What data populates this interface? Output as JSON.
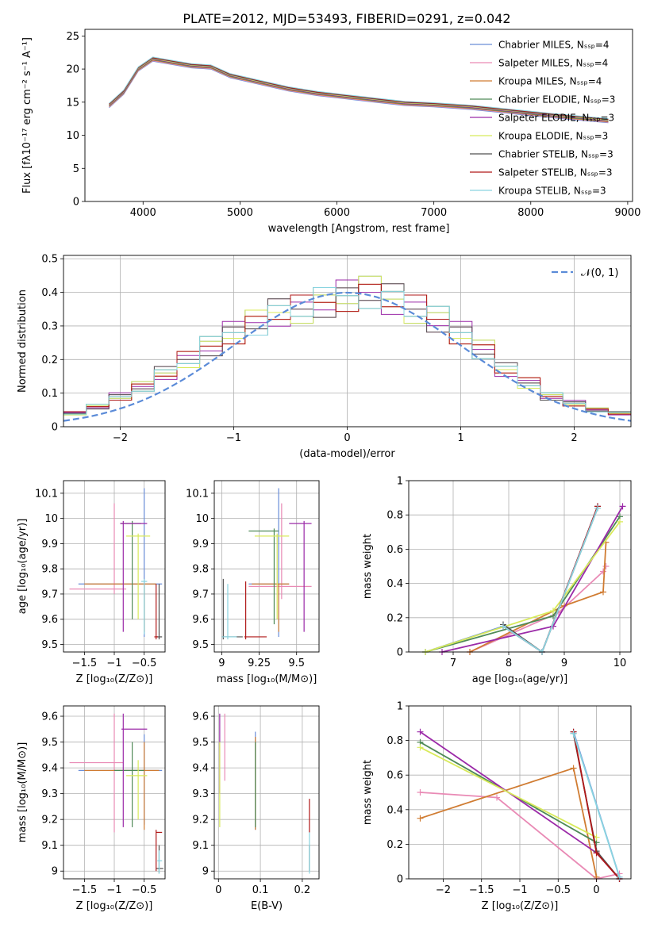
{
  "title": "PLATE=2012, MJD=53493, FIBERID=0291, z=0.042",
  "colors": [
    "#6a8ed8",
    "#e98ab5",
    "#d07c32",
    "#4f8a57",
    "#9b2aa8",
    "#d8ea5a",
    "#505050",
    "#b01818",
    "#8ad4e0"
  ],
  "chart_data": [
    {
      "id": "spectrum",
      "type": "line",
      "xlabel": "wavelength [Angstrom, rest frame]",
      "ylabel": "Flux [fλ10⁻¹⁷ erg cm⁻² s⁻¹ A⁻¹]",
      "xlim": [
        3400,
        9050
      ],
      "ylim": [
        0,
        26
      ],
      "xticks": [
        4000,
        5000,
        6000,
        7000,
        8000,
        9000
      ],
      "yticks": [
        0,
        5,
        10,
        15,
        20,
        25
      ],
      "legend_position": "top-right",
      "series": [
        {
          "name": "Chabrier MILES, Nₛₛₚ=4",
          "color": "#6a8ed8"
        },
        {
          "name": "Salpeter MILES, Nₛₛₚ=4",
          "color": "#e98ab5"
        },
        {
          "name": "Kroupa MILES, Nₛₛₚ=4",
          "color": "#d07c32"
        },
        {
          "name": "Chabrier ELODIE, Nₛₛₚ=3",
          "color": "#4f8a57"
        },
        {
          "name": "Salpeter ELODIE, Nₛₛₚ=3",
          "color": "#9b2aa8"
        },
        {
          "name": "Kroupa ELODIE, Nₛₛₚ=3",
          "color": "#d8ea5a"
        },
        {
          "name": "Chabrier STELIB, Nₛₛₚ=3",
          "color": "#505050"
        },
        {
          "name": "Salpeter STELIB, Nₛₛₚ=3",
          "color": "#b01818"
        },
        {
          "name": "Kroupa STELIB, Nₛₛₚ=3",
          "color": "#8ad4e0"
        }
      ],
      "data_x": [
        3650,
        3800,
        3950,
        4100,
        4300,
        4500,
        4700,
        4900,
        5200,
        5500,
        5800,
        6100,
        6400,
        6700,
        7000,
        7400,
        7800,
        8200,
        8500,
        8800
      ],
      "data_y": [
        14.5,
        16.5,
        20,
        21.5,
        21,
        20.5,
        20.3,
        19,
        18,
        17,
        16.3,
        15.8,
        15.3,
        14.8,
        14.6,
        14.2,
        13.6,
        13,
        12.6,
        12.2
      ],
      "model_x": [
        3650,
        3800,
        3950,
        4100,
        4300,
        4500,
        4700,
        4900,
        5200,
        5500,
        5800,
        6100,
        6400,
        6700,
        7000,
        7400,
        7800,
        8200,
        8500,
        8800
      ],
      "model_y": [
        14.5,
        16.5,
        20,
        21.5,
        21,
        20.5,
        20.3,
        19,
        18,
        17,
        16.3,
        15.8,
        15.3,
        14.8,
        14.6,
        14.2,
        13.6,
        13,
        12.6,
        12.2
      ]
    },
    {
      "id": "residuals",
      "type": "line",
      "xlabel": "(data-model)/error",
      "ylabel": "Normed distribution",
      "xlim": [
        -2.5,
        2.5
      ],
      "ylim": [
        0,
        0.51
      ],
      "xticks": [
        -2,
        -1,
        0,
        1,
        2
      ],
      "yticks": [
        0.0,
        0.1,
        0.2,
        0.3,
        0.4,
        0.5
      ],
      "legend": "𝒩(0, 1)",
      "legend_position": "top-right",
      "bin_centers": [
        -2.4,
        -2.2,
        -2.0,
        -1.8,
        -1.6,
        -1.4,
        -1.2,
        -1.0,
        -0.8,
        -0.6,
        -0.4,
        -0.2,
        0.0,
        0.2,
        0.4,
        0.6,
        0.8,
        1.0,
        1.2,
        1.4,
        1.6,
        1.8,
        2.0,
        2.2,
        2.4
      ],
      "histogram": [
        0.04,
        0.06,
        0.09,
        0.12,
        0.16,
        0.2,
        0.24,
        0.28,
        0.31,
        0.34,
        0.35,
        0.37,
        0.39,
        0.4,
        0.38,
        0.35,
        0.32,
        0.28,
        0.23,
        0.17,
        0.13,
        0.09,
        0.07,
        0.05,
        0.04
      ]
    },
    {
      "id": "z_age",
      "type": "scatter",
      "xlabel": "Z [log₁₀(Z/Z⊙)]",
      "ylabel": "age  [log₁₀(age/yr)]",
      "xlim": [
        -1.85,
        -0.15
      ],
      "ylim": [
        9.47,
        10.15
      ],
      "xticks": [
        -1.5,
        -1.0,
        -0.5
      ],
      "yticks": [
        9.5,
        9.6,
        9.7,
        9.8,
        9.9,
        10.0,
        10.1
      ],
      "crosses": [
        {
          "x": -0.5,
          "x_range": [
            -1.6,
            -0.2
          ],
          "y": 9.74,
          "y_range": [
            9.53,
            10.12
          ],
          "color": "#6a8ed8"
        },
        {
          "x": -1.0,
          "x_range": [
            -1.75,
            -0.8
          ],
          "y": 9.72,
          "y_range": [
            9.7,
            10.06
          ],
          "color": "#e98ab5"
        },
        {
          "x": -0.5,
          "x_range": [
            -1.5,
            -0.3
          ],
          "y": 9.74,
          "y_range": [
            9.55,
            9.74
          ],
          "color": "#d07c32"
        },
        {
          "x": -0.7,
          "x_range": [
            -0.9,
            -0.55
          ],
          "y": 9.98,
          "y_range": [
            9.6,
            9.99
          ],
          "color": "#4f8a57"
        },
        {
          "x": -0.85,
          "x_range": [
            -0.9,
            -0.45
          ],
          "y": 9.98,
          "y_range": [
            9.55,
            9.99
          ],
          "color": "#9b2aa8"
        },
        {
          "x": -0.6,
          "x_range": [
            -0.8,
            -0.4
          ],
          "y": 9.93,
          "y_range": [
            9.6,
            9.94
          ],
          "color": "#d8ea5a"
        },
        {
          "x": -0.25,
          "x_range": [
            -0.3,
            -0.2
          ],
          "y": 9.53,
          "y_range": [
            9.52,
            9.74
          ],
          "color": "#505050"
        },
        {
          "x": -0.3,
          "x_range": [
            -0.33,
            -0.27
          ],
          "y": 9.53,
          "y_range": [
            9.52,
            9.74
          ],
          "color": "#b01818"
        },
        {
          "x": -0.5,
          "x_range": [
            -0.55,
            -0.45
          ],
          "y": 9.75,
          "y_range": [
            9.54,
            9.76
          ],
          "color": "#8ad4e0"
        }
      ]
    },
    {
      "id": "mass_age",
      "type": "scatter",
      "xlabel": "mass [log₁₀(M/M⊙)]",
      "ylabel": "",
      "xlim": [
        8.95,
        9.65
      ],
      "ylim": [
        9.47,
        10.15
      ],
      "xticks": [
        9.0,
        9.25,
        9.5
      ],
      "yticks": [
        9.5,
        9.6,
        9.7,
        9.8,
        9.9,
        10.0,
        10.1
      ],
      "crosses": [
        {
          "x": 9.38,
          "x_range": [
            9.18,
            9.45
          ],
          "y": 9.74,
          "y_range": [
            9.53,
            10.12
          ],
          "color": "#6a8ed8"
        },
        {
          "x": 9.4,
          "x_range": [
            9.18,
            9.6
          ],
          "y": 9.73,
          "y_range": [
            9.68,
            10.06
          ],
          "color": "#e98ab5"
        },
        {
          "x": 9.38,
          "x_range": [
            9.2,
            9.45
          ],
          "y": 9.74,
          "y_range": [
            9.55,
            9.74
          ],
          "color": "#d07c32"
        },
        {
          "x": 9.35,
          "x_range": [
            9.18,
            9.38
          ],
          "y": 9.95,
          "y_range": [
            9.58,
            9.96
          ],
          "color": "#4f8a57"
        },
        {
          "x": 9.55,
          "x_range": [
            9.45,
            9.6
          ],
          "y": 9.98,
          "y_range": [
            9.55,
            9.99
          ],
          "color": "#9b2aa8"
        },
        {
          "x": 9.37,
          "x_range": [
            9.22,
            9.45
          ],
          "y": 9.93,
          "y_range": [
            9.6,
            9.94
          ],
          "color": "#d8ea5a"
        },
        {
          "x": 9.01,
          "x_range": [
            9.0,
            9.14
          ],
          "y": 9.53,
          "y_range": [
            9.52,
            9.76
          ],
          "color": "#505050"
        },
        {
          "x": 9.16,
          "x_range": [
            9.15,
            9.3
          ],
          "y": 9.53,
          "y_range": [
            9.52,
            9.75
          ],
          "color": "#b01818"
        },
        {
          "x": 9.04,
          "x_range": [
            9.0,
            9.1
          ],
          "y": 9.53,
          "y_range": [
            9.52,
            9.74
          ],
          "color": "#8ad4e0"
        }
      ]
    },
    {
      "id": "age_weight",
      "type": "line",
      "xlabel": "age  [log₁₀(age/yr)]",
      "ylabel": "mass weight",
      "xlim": [
        6.2,
        10.2
      ],
      "ylim": [
        0,
        1.0
      ],
      "xticks": [
        7,
        8,
        9,
        10
      ],
      "yticks": [
        0.0,
        0.2,
        0.4,
        0.6,
        0.8,
        1.0
      ],
      "series": [
        {
          "color": "#6a8ed8",
          "x": [
            6.5,
            7.9,
            8.6,
            9.6
          ],
          "y": [
            0.0,
            0.15,
            0.0,
            0.85
          ]
        },
        {
          "color": "#e98ab5",
          "x": [
            7.3,
            8.9,
            9.7,
            9.75
          ],
          "y": [
            0.0,
            0.23,
            0.47,
            0.5
          ]
        },
        {
          "color": "#d07c32",
          "x": [
            7.3,
            9.0,
            9.7,
            9.75
          ],
          "y": [
            0.0,
            0.27,
            0.35,
            0.64
          ]
        },
        {
          "color": "#4f8a57",
          "x": [
            6.5,
            8.8,
            10.0
          ],
          "y": [
            0.0,
            0.21,
            0.79
          ]
        },
        {
          "color": "#9b2aa8",
          "x": [
            6.8,
            8.8,
            10.05
          ],
          "y": [
            0.0,
            0.15,
            0.85
          ]
        },
        {
          "color": "#d8ea5a",
          "x": [
            6.5,
            8.8,
            10.0
          ],
          "y": [
            0.0,
            0.24,
            0.76
          ]
        },
        {
          "color": "#505050",
          "x": [
            7.9,
            8.6,
            9.6
          ],
          "y": [
            0.16,
            0.0,
            0.84
          ]
        },
        {
          "color": "#b01818",
          "x": [
            7.9,
            8.6,
            9.6
          ],
          "y": [
            0.15,
            0.0,
            0.85
          ]
        },
        {
          "color": "#8ad4e0",
          "x": [
            7.9,
            8.6,
            9.6
          ],
          "y": [
            0.15,
            0.0,
            0.84
          ]
        }
      ]
    },
    {
      "id": "z_mass",
      "type": "scatter",
      "xlabel": "Z [log₁₀(Z/Z⊙)]",
      "ylabel": "mass [log₁₀(M/M⊙)]",
      "xlim": [
        -1.85,
        -0.15
      ],
      "ylim": [
        8.97,
        9.64
      ],
      "xticks": [
        -1.5,
        -1.0,
        -0.5
      ],
      "yticks": [
        9.0,
        9.1,
        9.2,
        9.3,
        9.4,
        9.5,
        9.6
      ],
      "crosses": [
        {
          "x": -0.5,
          "x_range": [
            -1.6,
            -0.2
          ],
          "y": 9.39,
          "y_range": [
            9.18,
            9.53
          ],
          "color": "#6a8ed8"
        },
        {
          "x": -1.0,
          "x_range": [
            -1.75,
            -0.85
          ],
          "y": 9.42,
          "y_range": [
            9.15,
            9.61
          ],
          "color": "#e98ab5"
        },
        {
          "x": -0.5,
          "x_range": [
            -1.5,
            -0.25
          ],
          "y": 9.39,
          "y_range": [
            9.16,
            9.5
          ],
          "color": "#d07c32"
        },
        {
          "x": -0.7,
          "x_range": [
            -1.0,
            -0.5
          ],
          "y": 9.39,
          "y_range": [
            9.17,
            9.5
          ],
          "color": "#4f8a57"
        },
        {
          "x": -0.85,
          "x_range": [
            -0.88,
            -0.45
          ],
          "y": 9.55,
          "y_range": [
            9.17,
            9.61
          ],
          "color": "#9b2aa8"
        },
        {
          "x": -0.6,
          "x_range": [
            -0.8,
            -0.45
          ],
          "y": 9.37,
          "y_range": [
            9.2,
            9.43
          ],
          "color": "#d8ea5a"
        },
        {
          "x": -0.25,
          "x_range": [
            -0.3,
            -0.18
          ],
          "y": 9.01,
          "y_range": [
            8.99,
            9.1
          ],
          "color": "#505050"
        },
        {
          "x": -0.3,
          "x_range": [
            -0.3,
            -0.2
          ],
          "y": 9.15,
          "y_range": [
            9.0,
            9.16
          ],
          "color": "#b01818"
        },
        {
          "x": -0.25,
          "x_range": [
            -0.28,
            -0.2
          ],
          "y": 9.04,
          "y_range": [
            8.99,
            9.08
          ],
          "color": "#8ad4e0"
        }
      ]
    },
    {
      "id": "ebv_mass",
      "type": "scatter",
      "xlabel": "E(B-V)",
      "ylabel": "",
      "xlim": [
        -0.01,
        0.24
      ],
      "ylim": [
        8.97,
        9.64
      ],
      "xticks": [
        0.0,
        0.1,
        0.2
      ],
      "yticks": [
        9.0,
        9.1,
        9.2,
        9.3,
        9.4,
        9.5,
        9.6
      ],
      "crosses": [
        {
          "x": 0.088,
          "y": 9.39,
          "y_range": [
            9.16,
            9.54
          ],
          "color": "#6a8ed8"
        },
        {
          "x": 0.015,
          "y": 9.42,
          "y_range": [
            9.35,
            9.61
          ],
          "color": "#e98ab5"
        },
        {
          "x": 0.088,
          "y": 9.39,
          "y_range": [
            9.16,
            9.52
          ],
          "color": "#d07c32"
        },
        {
          "x": 0.088,
          "y": 9.39,
          "y_range": [
            9.17,
            9.5
          ],
          "color": "#4f8a57"
        },
        {
          "x": 0.003,
          "y": 9.55,
          "y_range": [
            9.3,
            9.61
          ],
          "color": "#9b2aa8"
        },
        {
          "x": 0.003,
          "y": 9.37,
          "y_range": [
            9.17,
            9.5
          ],
          "color": "#d8ea5a"
        },
        {
          "x": 0.217,
          "y": 9.01,
          "y_range": [
            9.0,
            9.1
          ],
          "color": "#505050"
        },
        {
          "x": 0.217,
          "y": 9.15,
          "y_range": [
            9.15,
            9.28
          ],
          "color": "#b01818"
        },
        {
          "x": 0.217,
          "y": 9.04,
          "y_range": [
            8.99,
            9.15
          ],
          "color": "#8ad4e0"
        }
      ]
    },
    {
      "id": "z_weight",
      "type": "line",
      "xlabel": "Z [log₁₀(Z/Z⊙)]",
      "ylabel": "mass weight",
      "xlim": [
        -2.45,
        0.45
      ],
      "ylim": [
        0,
        1.0
      ],
      "xticks": [
        -2.0,
        -1.5,
        -1.0,
        -0.5,
        0.0
      ],
      "yticks": [
        0.0,
        0.2,
        0.4,
        0.6,
        0.8,
        1.0
      ],
      "series": [
        {
          "color": "#6a8ed8",
          "x": [
            -0.3,
            0.3
          ],
          "y": [
            0.85,
            0.01
          ]
        },
        {
          "color": "#e98ab5",
          "x": [
            -2.3,
            -1.3,
            0.0,
            0.3
          ],
          "y": [
            0.5,
            0.47,
            0.0,
            0.03
          ]
        },
        {
          "color": "#d07c32",
          "x": [
            -2.3,
            -0.3,
            0.0
          ],
          "y": [
            0.35,
            0.64,
            0.01
          ]
        },
        {
          "color": "#4f8a57",
          "x": [
            -2.3,
            0.0
          ],
          "y": [
            0.79,
            0.21
          ]
        },
        {
          "color": "#9b2aa8",
          "x": [
            -2.3,
            0.0,
            0.3
          ],
          "y": [
            0.85,
            0.15,
            0.0
          ]
        },
        {
          "color": "#d8ea5a",
          "x": [
            -2.3,
            0.0
          ],
          "y": [
            0.76,
            0.24
          ]
        },
        {
          "color": "#505050",
          "x": [
            -0.3,
            0.0,
            0.3
          ],
          "y": [
            0.84,
            0.16,
            0.0
          ]
        },
        {
          "color": "#b01818",
          "x": [
            -0.3,
            0.0,
            0.3
          ],
          "y": [
            0.85,
            0.15,
            0.0
          ]
        },
        {
          "color": "#8ad4e0",
          "x": [
            -0.3,
            0.3
          ],
          "y": [
            0.84,
            0.01
          ]
        }
      ]
    }
  ]
}
